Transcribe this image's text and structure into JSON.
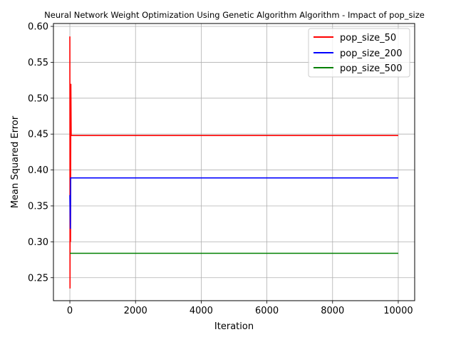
{
  "chart_data": {
    "type": "line",
    "title": "Neural Network Weight Optimization Using Genetic Algorithm Algorithm - Impact of pop_size",
    "xlabel": "Iteration",
    "ylabel": "Mean Squared Error",
    "xlim": [
      -500,
      10500
    ],
    "ylim": [
      0.218,
      0.604
    ],
    "xticks": [
      0,
      2000,
      4000,
      6000,
      8000,
      10000
    ],
    "yticks": [
      0.25,
      0.3,
      0.35,
      0.4,
      0.45,
      0.5,
      0.55,
      0.6
    ],
    "xtick_labels": [
      "0",
      "2000",
      "4000",
      "6000",
      "8000",
      "10000"
    ],
    "ytick_labels": [
      "0.25",
      "0.30",
      "0.35",
      "0.40",
      "0.45",
      "0.50",
      "0.55",
      "0.60"
    ],
    "grid": true,
    "legend_position": "top-right",
    "series": [
      {
        "name": "pop_size_50",
        "color": "#ff0000",
        "points": [
          [
            0,
            0.586
          ],
          [
            5,
            0.235
          ],
          [
            10,
            0.52
          ],
          [
            20,
            0.3
          ],
          [
            30,
            0.52
          ],
          [
            40,
            0.448
          ],
          [
            10000,
            0.448
          ]
        ]
      },
      {
        "name": "pop_size_200",
        "color": "#0000ff",
        "points": [
          [
            0,
            0.365
          ],
          [
            15,
            0.318
          ],
          [
            25,
            0.389
          ],
          [
            10000,
            0.389
          ]
        ]
      },
      {
        "name": "pop_size_500",
        "color": "#008000",
        "points": [
          [
            0,
            0.284
          ],
          [
            10000,
            0.284
          ]
        ]
      }
    ]
  }
}
